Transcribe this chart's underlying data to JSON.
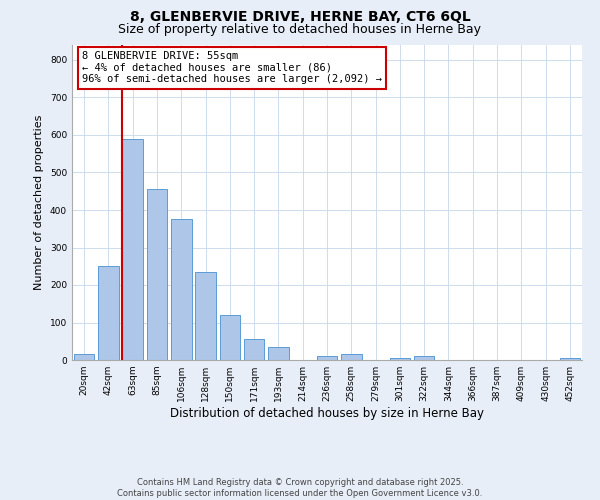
{
  "title1": "8, GLENBERVIE DRIVE, HERNE BAY, CT6 6QL",
  "title2": "Size of property relative to detached houses in Herne Bay",
  "xlabel": "Distribution of detached houses by size in Herne Bay",
  "ylabel": "Number of detached properties",
  "bin_labels": [
    "20sqm",
    "42sqm",
    "63sqm",
    "85sqm",
    "106sqm",
    "128sqm",
    "150sqm",
    "171sqm",
    "193sqm",
    "214sqm",
    "236sqm",
    "258sqm",
    "279sqm",
    "301sqm",
    "322sqm",
    "344sqm",
    "366sqm",
    "387sqm",
    "409sqm",
    "430sqm",
    "452sqm"
  ],
  "bar_heights": [
    15,
    250,
    590,
    455,
    375,
    235,
    120,
    55,
    35,
    0,
    10,
    15,
    0,
    5,
    10,
    0,
    0,
    0,
    0,
    0,
    5
  ],
  "bar_color": "#aec6e8",
  "bar_edgecolor": "#5b9bd5",
  "vline_x_index": 2,
  "vline_color": "#cc0000",
  "annotation_text": "8 GLENBERVIE DRIVE: 55sqm\n← 4% of detached houses are smaller (86)\n96% of semi-detached houses are larger (2,092) →",
  "annotation_box_edgecolor": "#cc0000",
  "annotation_box_facecolor": "#ffffff",
  "ylim": [
    0,
    840
  ],
  "yticks": [
    0,
    100,
    200,
    300,
    400,
    500,
    600,
    700,
    800
  ],
  "footer1": "Contains HM Land Registry data © Crown copyright and database right 2025.",
  "footer2": "Contains public sector information licensed under the Open Government Licence v3.0.",
  "background_color": "#e8eef8",
  "plot_background": "#ffffff",
  "title_fontsize": 10,
  "subtitle_fontsize": 9,
  "annotation_fontsize": 7.5,
  "ylabel_fontsize": 8,
  "xlabel_fontsize": 8.5,
  "tick_fontsize": 6.5,
  "footer_fontsize": 6
}
